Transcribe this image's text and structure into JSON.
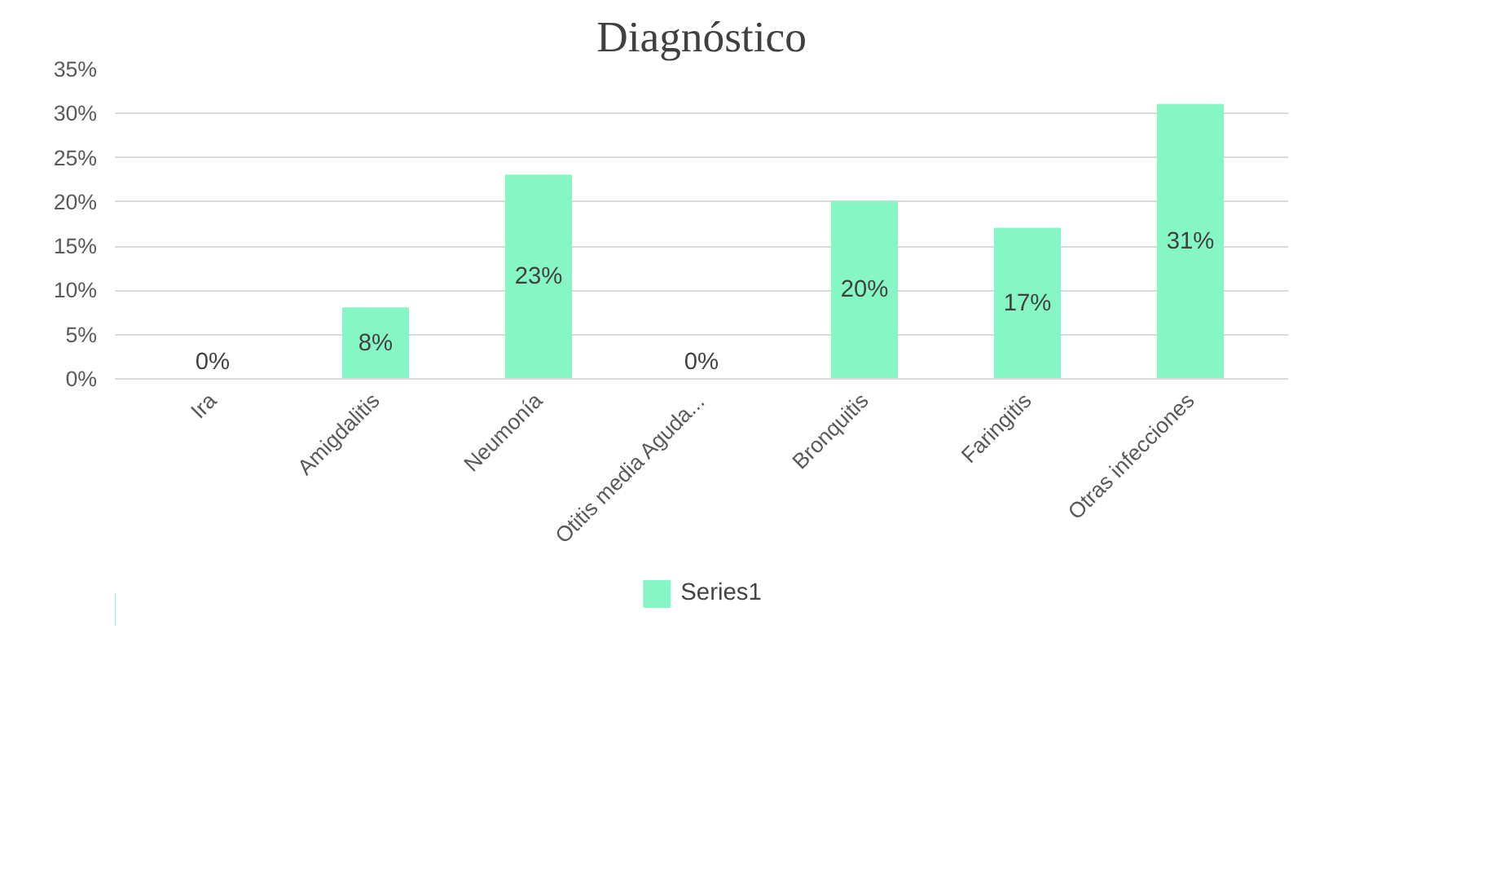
{
  "chart_data": {
    "type": "bar",
    "title": "Diagnóstico",
    "categories": [
      "Ira",
      "Amigdalitis",
      "Neumonía",
      "Otitis media Aguda...",
      "Bronquitis",
      "Faringitis",
      "Otras infecciones"
    ],
    "series": [
      {
        "name": "Series1",
        "color": "#86f7c4",
        "values": [
          0,
          8,
          23,
          0,
          20,
          17,
          31
        ]
      }
    ],
    "value_labels": [
      "0%",
      "8%",
      "23%",
      "0%",
      "20%",
      "17%",
      "31%"
    ],
    "ylim": [
      0,
      35
    ],
    "yticks": [
      {
        "value": 0,
        "label": "0%"
      },
      {
        "value": 5,
        "label": "5%"
      },
      {
        "value": 10,
        "label": "10%"
      },
      {
        "value": 15,
        "label": "15%"
      },
      {
        "value": 20,
        "label": "20%"
      },
      {
        "value": 25,
        "label": "25%"
      },
      {
        "value": 30,
        "label": "30%"
      },
      {
        "value": 35,
        "label": "35%"
      }
    ],
    "grid": "y",
    "legend": "bottom"
  }
}
